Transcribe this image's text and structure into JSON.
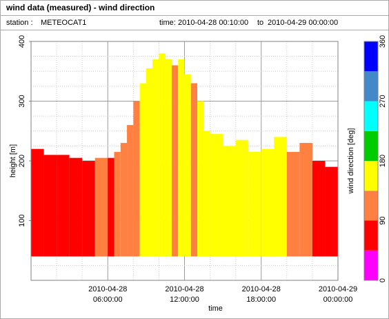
{
  "header": {
    "title": "wind data (measured) - wind direction"
  },
  "info": {
    "station_label": "station :",
    "station_value": "METEOCAT1",
    "time_label": "time:",
    "time_from": "2010-04-28 00:10:00",
    "time_to_word": "to",
    "time_to": "2010-04-29 00:00:00"
  },
  "chart_data": {
    "type": "heatmap",
    "xlabel": "time",
    "ylabel": "height [m]",
    "x_range_hours": [
      0,
      24
    ],
    "ylim": [
      0,
      400
    ],
    "y_ticks": [
      100,
      200,
      300,
      400
    ],
    "x_ticks": [
      {
        "hour": 6,
        "line1": "2010-04-28",
        "line2": "06:00:00"
      },
      {
        "hour": 12,
        "line1": "2010-04-28",
        "line2": "12:00:00"
      },
      {
        "hour": 18,
        "line1": "2010-04-28",
        "line2": "18:00:00"
      },
      {
        "hour": 24,
        "line1": "2010-04-29",
        "line2": "00:00:00"
      }
    ],
    "grid": true,
    "colorbar": {
      "label": "wind direction [deg]",
      "ticks": [
        0,
        90,
        180,
        270,
        360
      ],
      "bins": [
        {
          "from": 0,
          "to": 45,
          "color": "#ff00ff"
        },
        {
          "from": 45,
          "to": 90,
          "color": "#ff0000"
        },
        {
          "from": 90,
          "to": 135,
          "color": "#ff8040"
        },
        {
          "from": 135,
          "to": 180,
          "color": "#ffff00"
        },
        {
          "from": 180,
          "to": 225,
          "color": "#00cc00"
        },
        {
          "from": 225,
          "to": 270,
          "color": "#00ffff"
        },
        {
          "from": 270,
          "to": 315,
          "color": "#4488cc"
        },
        {
          "from": 315,
          "to": 360,
          "color": "#0000ff"
        }
      ]
    },
    "data_bottom_height": 40,
    "column_profiles": [
      {
        "from_hour": 0.0,
        "to_hour": 1.0,
        "top": 220,
        "direction_bin": 1
      },
      {
        "from_hour": 1.0,
        "to_hour": 2.0,
        "top": 210,
        "direction_bin": 1
      },
      {
        "from_hour": 2.0,
        "to_hour": 3.0,
        "top": 210,
        "direction_bin": 1
      },
      {
        "from_hour": 3.0,
        "to_hour": 4.0,
        "top": 205,
        "direction_bin": 1
      },
      {
        "from_hour": 4.0,
        "to_hour": 5.0,
        "top": 200,
        "direction_bin": 1
      },
      {
        "from_hour": 5.0,
        "to_hour": 6.0,
        "top": 205,
        "direction_bin": 2
      },
      {
        "from_hour": 6.0,
        "to_hour": 6.5,
        "top": 205,
        "direction_bin": 1
      },
      {
        "from_hour": 6.5,
        "to_hour": 7.0,
        "top": 215,
        "direction_bin": 2
      },
      {
        "from_hour": 7.0,
        "to_hour": 7.5,
        "top": 230,
        "direction_bin": 2
      },
      {
        "from_hour": 7.5,
        "to_hour": 8.0,
        "top": 260,
        "direction_bin": 2
      },
      {
        "from_hour": 8.0,
        "to_hour": 8.5,
        "top": 300,
        "direction_bin": 2
      },
      {
        "from_hour": 8.5,
        "to_hour": 9.0,
        "top": 330,
        "direction_bin": 3
      },
      {
        "from_hour": 9.0,
        "to_hour": 9.5,
        "top": 355,
        "direction_bin": 3
      },
      {
        "from_hour": 9.5,
        "to_hour": 10.0,
        "top": 370,
        "direction_bin": 3
      },
      {
        "from_hour": 10.0,
        "to_hour": 10.5,
        "top": 380,
        "direction_bin": 3
      },
      {
        "from_hour": 10.5,
        "to_hour": 11.0,
        "top": 370,
        "direction_bin": 3
      },
      {
        "from_hour": 11.0,
        "to_hour": 11.5,
        "top": 360,
        "direction_bin": 2
      },
      {
        "from_hour": 11.5,
        "to_hour": 12.0,
        "top": 370,
        "direction_bin": 3
      },
      {
        "from_hour": 12.0,
        "to_hour": 12.5,
        "top": 345,
        "direction_bin": 3
      },
      {
        "from_hour": 12.5,
        "to_hour": 13.0,
        "top": 330,
        "direction_bin": 2
      },
      {
        "from_hour": 13.0,
        "to_hour": 13.5,
        "top": 300,
        "direction_bin": 3
      },
      {
        "from_hour": 13.5,
        "to_hour": 14.0,
        "top": 250,
        "direction_bin": 3
      },
      {
        "from_hour": 14.0,
        "to_hour": 15.0,
        "top": 245,
        "direction_bin": 3
      },
      {
        "from_hour": 15.0,
        "to_hour": 16.0,
        "top": 225,
        "direction_bin": 3
      },
      {
        "from_hour": 16.0,
        "to_hour": 17.0,
        "top": 235,
        "direction_bin": 3
      },
      {
        "from_hour": 17.0,
        "to_hour": 18.0,
        "top": 215,
        "direction_bin": 3
      },
      {
        "from_hour": 18.0,
        "to_hour": 19.0,
        "top": 220,
        "direction_bin": 3
      },
      {
        "from_hour": 19.0,
        "to_hour": 20.0,
        "top": 240,
        "direction_bin": 3
      },
      {
        "from_hour": 20.0,
        "to_hour": 21.0,
        "top": 215,
        "direction_bin": 2
      },
      {
        "from_hour": 21.0,
        "to_hour": 22.0,
        "top": 230,
        "direction_bin": 2
      },
      {
        "from_hour": 22.0,
        "to_hour": 23.0,
        "top": 200,
        "direction_bin": 1
      },
      {
        "from_hour": 23.0,
        "to_hour": 24.0,
        "top": 190,
        "direction_bin": 1
      }
    ]
  }
}
